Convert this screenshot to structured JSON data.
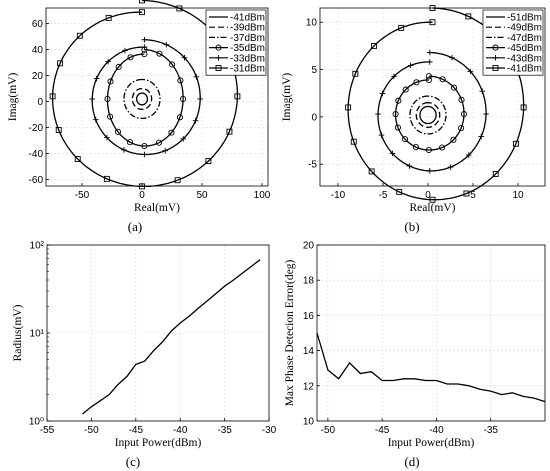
{
  "chart_data": [
    {
      "id": "a",
      "type": "line",
      "panel_label": "(a)",
      "xlabel": "Real(mV)",
      "ylabel": "Imag(mV)",
      "xlim": [
        -80,
        105
      ],
      "ylim": [
        -65,
        72
      ],
      "xticks": [
        -50,
        0,
        50,
        100
      ],
      "yticks": [
        -60,
        -40,
        -20,
        0,
        20,
        40,
        60
      ],
      "grid": true,
      "legend_position": "top-right",
      "series": [
        {
          "name": "-41dBm",
          "style": "solid",
          "marker": "none",
          "cx": 0,
          "cy": 2,
          "r0": 4.5,
          "r1": 4.5,
          "ry_scale": 1.0
        },
        {
          "name": "-39dBm",
          "style": "dashed",
          "marker": "none",
          "cx": 0,
          "cy": 2,
          "r0": 8,
          "r1": 8,
          "ry_scale": 1.0
        },
        {
          "name": "-37dBm",
          "style": "dashdot",
          "marker": "none",
          "cx": 0,
          "cy": 2,
          "r0": 15,
          "r1": 15,
          "ry_scale": 1.0
        },
        {
          "name": "-35dBm",
          "style": "solid",
          "marker": "circle",
          "cx": 2,
          "cy": 2,
          "r0": 30,
          "r1": 33,
          "ry_scale": 1.15
        },
        {
          "name": "-33dBm",
          "style": "solid",
          "marker": "plus",
          "cx": 2,
          "cy": 2,
          "r0": 42,
          "r1": 48,
          "ry_scale": 0.95
        },
        {
          "name": "-31dBm",
          "style": "solid",
          "marker": "square",
          "cx": 0,
          "cy": 4,
          "r0": 72,
          "r1": 82,
          "ry_scale": 0.9
        }
      ]
    },
    {
      "id": "b",
      "type": "line",
      "panel_label": "(b)",
      "xlabel": "Real(mV)",
      "ylabel": "Imag(mV)",
      "xlim": [
        -12,
        13
      ],
      "ylim": [
        -7.3,
        11.5
      ],
      "xticks": [
        -10,
        -5,
        0,
        5,
        10
      ],
      "yticks": [
        -5,
        0,
        5,
        10
      ],
      "grid": true,
      "legend_position": "top-right",
      "series": [
        {
          "name": "-51dBm",
          "style": "solid",
          "marker": "none",
          "cx": 0,
          "cy": 0.2,
          "r0": 0.9,
          "r1": 0.9,
          "ry_scale": 1.0
        },
        {
          "name": "-49dBm",
          "style": "dashed",
          "marker": "none",
          "cx": 0,
          "cy": 0.2,
          "r0": 1.3,
          "r1": 1.3,
          "ry_scale": 1.0
        },
        {
          "name": "-47dBm",
          "style": "dashdot",
          "marker": "none",
          "cx": 0,
          "cy": 0.2,
          "r0": 2.0,
          "r1": 2.0,
          "ry_scale": 1.0
        },
        {
          "name": "-45dBm",
          "style": "solid",
          "marker": "circle",
          "cx": 0.1,
          "cy": 0.3,
          "r0": 3.6,
          "r1": 4.0,
          "ry_scale": 1.0
        },
        {
          "name": "-43dBm",
          "style": "solid",
          "marker": "plus",
          "cx": 0.2,
          "cy": 0.3,
          "r0": 5.5,
          "r1": 6.5,
          "ry_scale": 1.0
        },
        {
          "name": "-41dBm",
          "style": "solid",
          "marker": "square",
          "cx": 0.5,
          "cy": 1.0,
          "r0": 9.0,
          "r1": 10.5,
          "ry_scale": 1.0
        }
      ]
    },
    {
      "id": "c",
      "type": "line",
      "panel_label": "(c)",
      "xlabel": "Input Power(dBm)",
      "ylabel": "Radius(mV)",
      "xlim": [
        -55,
        -30
      ],
      "ylim": [
        1,
        100
      ],
      "yscale": "log",
      "xticks": [
        -55,
        -50,
        -45,
        -40,
        -35,
        -30
      ],
      "yticks": [
        1,
        10,
        100
      ],
      "yticklabels": [
        "10⁰",
        "10¹",
        "10²"
      ],
      "grid": true,
      "series": [
        {
          "name": "",
          "x": [
            -51,
            -50,
            -49,
            -48,
            -47,
            -46,
            -45,
            -44,
            -43,
            -42,
            -41,
            -40,
            -39,
            -38,
            -37,
            -36,
            -35,
            -34,
            -33,
            -32,
            -31
          ],
          "y": [
            1.2,
            1.45,
            1.7,
            2.0,
            2.6,
            3.2,
            4.4,
            4.8,
            6.3,
            7.9,
            10.5,
            13,
            15.5,
            19,
            23,
            28,
            34,
            40,
            48,
            57,
            68
          ]
        }
      ]
    },
    {
      "id": "d",
      "type": "line",
      "panel_label": "(d)",
      "xlabel": "Input Power(dBm)",
      "ylabel": "Max Phase Detecion Error(deg)",
      "xlim": [
        -51,
        -30
      ],
      "ylim": [
        10,
        20
      ],
      "xticks": [
        -50,
        -45,
        -40,
        -35
      ],
      "yticks": [
        10,
        12,
        14,
        16,
        18,
        20
      ],
      "grid": true,
      "series": [
        {
          "name": "",
          "x": [
            -51,
            -50,
            -49,
            -48,
            -47,
            -46,
            -45,
            -44,
            -43,
            -42,
            -41,
            -40,
            -39,
            -38,
            -37,
            -36,
            -35,
            -34,
            -33,
            -32,
            -31,
            -30
          ],
          "y": [
            15.0,
            12.9,
            12.4,
            13.3,
            12.7,
            12.8,
            12.3,
            12.3,
            12.4,
            12.4,
            12.3,
            12.3,
            12.1,
            12.1,
            12.0,
            11.8,
            11.7,
            11.5,
            11.6,
            11.4,
            11.3,
            11.1
          ]
        }
      ]
    }
  ]
}
